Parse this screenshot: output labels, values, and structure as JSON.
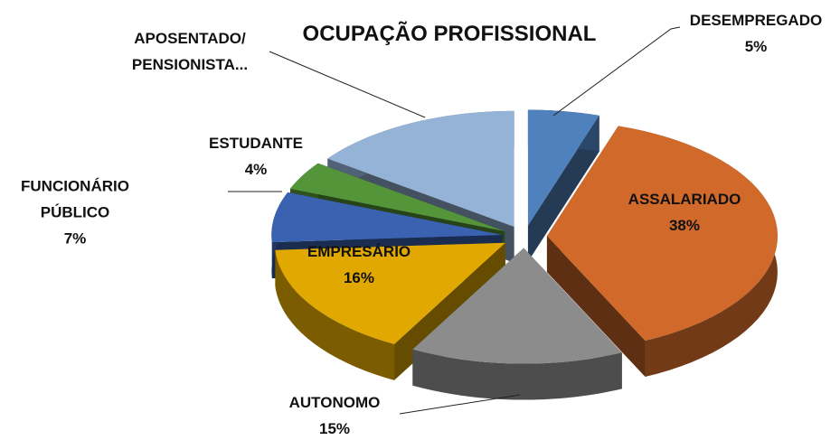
{
  "chart_data": {
    "type": "pie",
    "title": "OCUPAÇÃO PROFISSIONAL",
    "categories": [
      "DESEMPREGADO",
      "ASSALARIADO",
      "AUTONOMO",
      "EMPRESÁRIO",
      "FUNCIONÁRIO\nPÚBLICO",
      "ESTUDANTE",
      "APOSENTADO/\nPENSIONISTA..."
    ],
    "values": [
      5,
      38,
      15,
      16,
      7,
      4,
      15
    ],
    "value_labels": [
      "5%",
      "38%",
      "15%",
      "16%",
      "7%",
      "4%",
      null
    ],
    "colors": [
      "#4f81bd",
      "#d0692a",
      "#8c8c8c",
      "#e0a800",
      "#3a62b0",
      "#55953a",
      "#95b3d7"
    ]
  }
}
